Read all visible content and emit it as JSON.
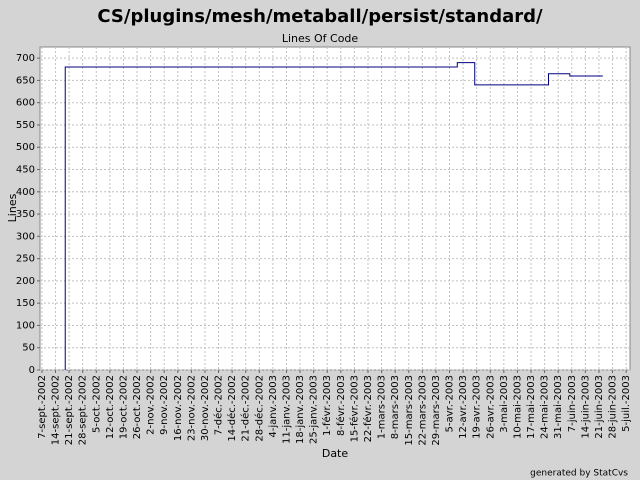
{
  "chart_data": {
    "type": "line",
    "title": "CS/plugins/mesh/metaball/persist/standard/",
    "subtitle": "Lines Of Code",
    "x_label": "Date",
    "y_label": "Lines",
    "footer": "generated by StatCvs",
    "grid": true,
    "x": [
      "2002-09-19",
      "2002-09-19",
      "2003-04-09",
      "2003-04-09",
      "2003-04-18",
      "2003-04-18",
      "2003-05-26",
      "2003-05-26",
      "2003-06-06",
      "2003-06-06",
      "2003-06-23"
    ],
    "series": [
      {
        "name": "Lines",
        "color": "#000080",
        "values": [
          0,
          680,
          680,
          690,
          690,
          640,
          640,
          665,
          665,
          660,
          660
        ]
      }
    ],
    "xlim": [
      "2002-09-06",
      "2003-07-07"
    ],
    "xticks": [
      {
        "value": "2002-09-07",
        "label": "7-sept.-2002"
      },
      {
        "value": "2002-09-14",
        "label": "14-sept.-2002"
      },
      {
        "value": "2002-09-21",
        "label": "21-sept.-2002"
      },
      {
        "value": "2002-09-28",
        "label": "28-sept.-2002"
      },
      {
        "value": "2002-10-05",
        "label": "5-oct.-2002"
      },
      {
        "value": "2002-10-12",
        "label": "12-oct.-2002"
      },
      {
        "value": "2002-10-19",
        "label": "19-oct.-2002"
      },
      {
        "value": "2002-10-26",
        "label": "26-oct.-2002"
      },
      {
        "value": "2002-11-02",
        "label": "2-nov.-2002"
      },
      {
        "value": "2002-11-09",
        "label": "9-nov.-2002"
      },
      {
        "value": "2002-11-16",
        "label": "16-nov.-2002"
      },
      {
        "value": "2002-11-23",
        "label": "23-nov.-2002"
      },
      {
        "value": "2002-11-30",
        "label": "30-nov.-2002"
      },
      {
        "value": "2002-12-07",
        "label": "7-déc.-2002"
      },
      {
        "value": "2002-12-14",
        "label": "14-déc.-2002"
      },
      {
        "value": "2002-12-21",
        "label": "21-déc.-2002"
      },
      {
        "value": "2002-12-28",
        "label": "28-déc.-2002"
      },
      {
        "value": "2003-01-04",
        "label": "4-janv.-2003"
      },
      {
        "value": "2003-01-11",
        "label": "11-janv.-2003"
      },
      {
        "value": "2003-01-18",
        "label": "18-janv.-2003"
      },
      {
        "value": "2003-01-25",
        "label": "25-janv.-2003"
      },
      {
        "value": "2003-02-01",
        "label": "1-févr.-2003"
      },
      {
        "value": "2003-02-08",
        "label": "8-févr.-2003"
      },
      {
        "value": "2003-02-15",
        "label": "15-févr.-2003"
      },
      {
        "value": "2003-02-22",
        "label": "22-févr.-2003"
      },
      {
        "value": "2003-03-01",
        "label": "1-mars-2003"
      },
      {
        "value": "2003-03-08",
        "label": "8-mars-2003"
      },
      {
        "value": "2003-03-15",
        "label": "15-mars-2003"
      },
      {
        "value": "2003-03-22",
        "label": "22-mars-2003"
      },
      {
        "value": "2003-03-29",
        "label": "29-mars-2003"
      },
      {
        "value": "2003-04-05",
        "label": "5-avr.-2003"
      },
      {
        "value": "2003-04-12",
        "label": "12-avr.-2003"
      },
      {
        "value": "2003-04-19",
        "label": "19-avr.-2003"
      },
      {
        "value": "2003-04-26",
        "label": "26-avr.-2003"
      },
      {
        "value": "2003-05-03",
        "label": "3-mai-2003"
      },
      {
        "value": "2003-05-10",
        "label": "10-mai-2003"
      },
      {
        "value": "2003-05-17",
        "label": "17-mai-2003"
      },
      {
        "value": "2003-05-24",
        "label": "24-mai-2003"
      },
      {
        "value": "2003-05-31",
        "label": "31-mai-2003"
      },
      {
        "value": "2003-06-07",
        "label": "7-juin-2003"
      },
      {
        "value": "2003-06-14",
        "label": "14-juin-2003"
      },
      {
        "value": "2003-06-21",
        "label": "21-juin-2003"
      },
      {
        "value": "2003-06-28",
        "label": "28-juin-2003"
      },
      {
        "value": "2003-07-05",
        "label": "5-juil.-2003"
      }
    ],
    "ylim": [
      0,
      725
    ],
    "yticks": [
      0,
      50,
      100,
      150,
      200,
      250,
      300,
      350,
      400,
      450,
      500,
      550,
      600,
      650,
      700
    ]
  }
}
